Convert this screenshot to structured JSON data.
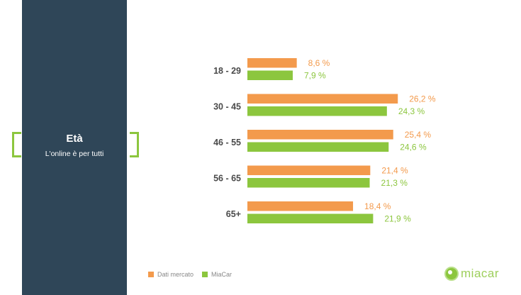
{
  "panel": {
    "title": "Età",
    "subtitle": "L'online è per tutti"
  },
  "colors": {
    "panel_bg": "#2f4658",
    "accent_green": "#8cc63e",
    "series_orange": "#f39a4c",
    "series_green": "#8cc63e"
  },
  "chart_data": {
    "type": "bar",
    "orientation": "horizontal",
    "categories": [
      "18 - 29",
      "30 - 45",
      "46 - 55",
      "56 - 65",
      "65+"
    ],
    "series": [
      {
        "name": "Dati mercato",
        "values": [
          8.6,
          26.2,
          25.4,
          21.4,
          18.4
        ],
        "labels": [
          "8,6 %",
          "26,2 %",
          "25,4 %",
          "21,4 %",
          "18,4 %"
        ],
        "color": "#f39a4c"
      },
      {
        "name": "MiaCar",
        "values": [
          7.9,
          24.3,
          24.6,
          21.3,
          21.9
        ],
        "labels": [
          "7,9 %",
          "24,3 %",
          "24,6 %",
          "21,3 %",
          "21,9 %"
        ],
        "color": "#8cc63e"
      }
    ],
    "legend_position": "bottom-left",
    "grid": false
  },
  "logo": {
    "text": "miacar"
  }
}
